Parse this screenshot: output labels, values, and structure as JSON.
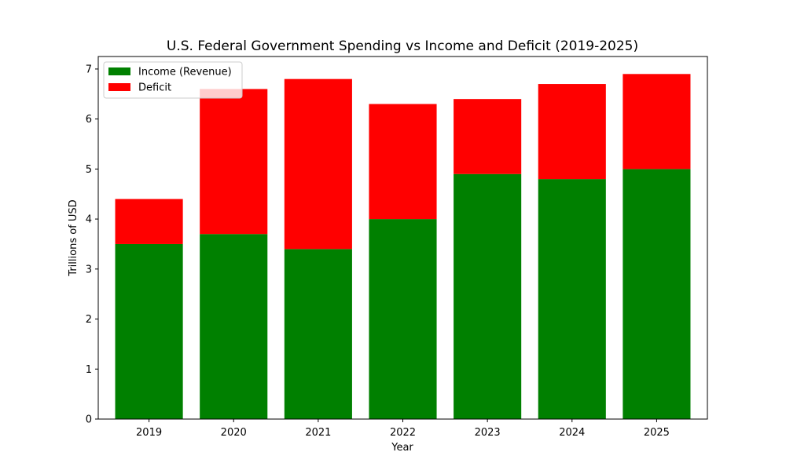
{
  "chart_data": {
    "type": "bar",
    "stacked": true,
    "title": "U.S. Federal Government Spending vs Income and Deficit (2019-2025)",
    "xlabel": "Year",
    "ylabel": "Trillions of USD",
    "categories": [
      "2019",
      "2020",
      "2021",
      "2022",
      "2023",
      "2024",
      "2025"
    ],
    "series": [
      {
        "name": "Income (Revenue)",
        "color": "#008000",
        "values": [
          3.5,
          3.7,
          3.4,
          4.0,
          4.9,
          4.8,
          5.0
        ]
      },
      {
        "name": "Deficit",
        "color": "#ff0000",
        "values": [
          0.9,
          2.9,
          3.4,
          2.3,
          1.5,
          1.9,
          1.9
        ]
      }
    ],
    "ylim": [
      0,
      7.25
    ],
    "yticks": [
      0,
      1,
      2,
      3,
      4,
      5,
      6,
      7
    ],
    "grid": false,
    "legend_position": "top-left"
  }
}
